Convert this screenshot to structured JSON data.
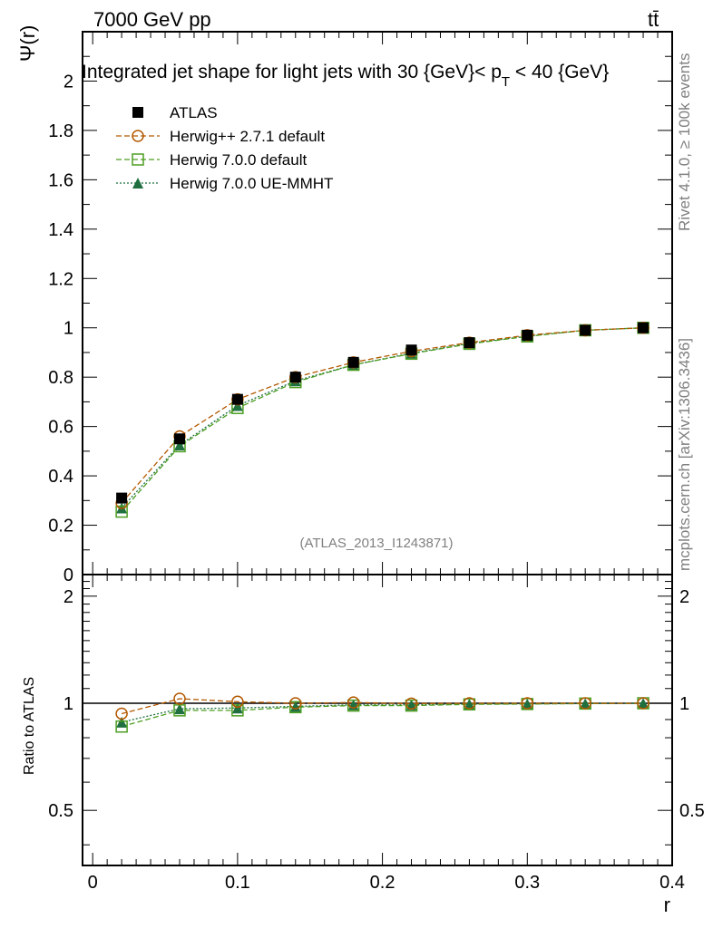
{
  "header": {
    "energy_label": "7000 GeV pp",
    "process_label": "tt̄",
    "side_label_top": "Rivet 4.1.0, ≥ 100k events",
    "side_label_bottom": "mcplots.cern.ch [arXiv:1306.3436]",
    "analysis_label": "(ATLAS_2013_I1243871)"
  },
  "colors": {
    "atlas": "#000000",
    "herwigpp": "#b35900",
    "herwig7_default": "#4d9e22",
    "herwig7_ue": "#1f6f3f",
    "reference_line": "#000000",
    "side_text": "#808080"
  },
  "chart_data": [
    {
      "type": "line",
      "panel": "main",
      "title": "Integrated jet shape for light jets with 30 {GeV}< p_T < 40 {GeV}",
      "title_parts": {
        "main": "Integrated jet shape for light jets with 30 {GeV}< p",
        "sub": "T",
        "tail": " < 40 {GeV}"
      },
      "xlabel": "r",
      "ylabel": "Ψ(r)",
      "xlim": [
        -0.007,
        0.4
      ],
      "ylim": [
        0,
        2.2
      ],
      "yticks": [
        0,
        0.2,
        0.4,
        0.6,
        0.8,
        1,
        1.2,
        1.4,
        1.6,
        1.8,
        2
      ],
      "ytick_labels": [
        "0",
        "0.2",
        "0.4",
        "0.6",
        "0.8",
        "1",
        "1.2",
        "1.4",
        "1.6",
        "1.8",
        "2"
      ],
      "legend_position": "top-left",
      "x": [
        0.02,
        0.06,
        0.1,
        0.14,
        0.18,
        0.22,
        0.26,
        0.3,
        0.34,
        0.38
      ],
      "series": [
        {
          "name": "ATLAS",
          "key": "atlas",
          "marker": "filled-square",
          "line": "none",
          "values": [
            0.31,
            0.55,
            0.71,
            0.8,
            0.86,
            0.91,
            0.94,
            0.97,
            0.99,
            1.0
          ]
        },
        {
          "name": "Herwig++ 2.7.1 default",
          "key": "herwigpp",
          "marker": "open-circle",
          "line": "dashed",
          "values": [
            0.29,
            0.56,
            0.71,
            0.8,
            0.86,
            0.905,
            0.94,
            0.97,
            0.99,
            1.0
          ]
        },
        {
          "name": "Herwig 7.0.0 default",
          "key": "herwig7_default",
          "marker": "open-square",
          "line": "dashed",
          "values": [
            0.255,
            0.52,
            0.675,
            0.78,
            0.85,
            0.895,
            0.935,
            0.965,
            0.99,
            1.0
          ]
        },
        {
          "name": "Herwig 7.0.0 UE-MMHT",
          "key": "herwig7_ue",
          "marker": "filled-triangle",
          "line": "dotted",
          "values": [
            0.27,
            0.525,
            0.685,
            0.785,
            0.85,
            0.897,
            0.937,
            0.966,
            0.99,
            1.0
          ]
        }
      ]
    },
    {
      "type": "line",
      "panel": "ratio",
      "xlabel": "r",
      "ylabel": "Ratio to ATLAS",
      "xlim": [
        -0.007,
        0.4
      ],
      "ylim": [
        0.35,
        2.3
      ],
      "yscale": "log",
      "yticks": [
        0.5,
        1,
        2
      ],
      "ytick_labels": [
        "0.5",
        "1",
        "2"
      ],
      "xticks": [
        0,
        0.1,
        0.2,
        0.3,
        0.4
      ],
      "xtick_labels": [
        "0",
        "0.1",
        "0.2",
        "0.3",
        "0.4"
      ],
      "x": [
        0.02,
        0.06,
        0.1,
        0.14,
        0.18,
        0.22,
        0.26,
        0.3,
        0.34,
        0.38
      ],
      "series": [
        {
          "name": "Herwig++ 2.7.1 default",
          "key": "herwigpp",
          "marker": "open-circle",
          "line": "dashed",
          "values": [
            0.935,
            1.03,
            1.01,
            1.0,
            1.005,
            0.998,
            1.0,
            1.0,
            1.0,
            1.0
          ]
        },
        {
          "name": "Herwig 7.0.0 default",
          "key": "herwig7_default",
          "marker": "open-square",
          "line": "dashed",
          "values": [
            0.86,
            0.955,
            0.955,
            0.975,
            0.985,
            0.985,
            0.993,
            0.995,
            0.998,
            1.0
          ]
        },
        {
          "name": "Herwig 7.0.0 UE-MMHT",
          "key": "herwig7_ue",
          "marker": "filled-triangle",
          "line": "dotted",
          "values": [
            0.885,
            0.965,
            0.97,
            0.98,
            0.99,
            0.99,
            0.995,
            0.996,
            0.998,
            1.0
          ]
        }
      ]
    }
  ]
}
